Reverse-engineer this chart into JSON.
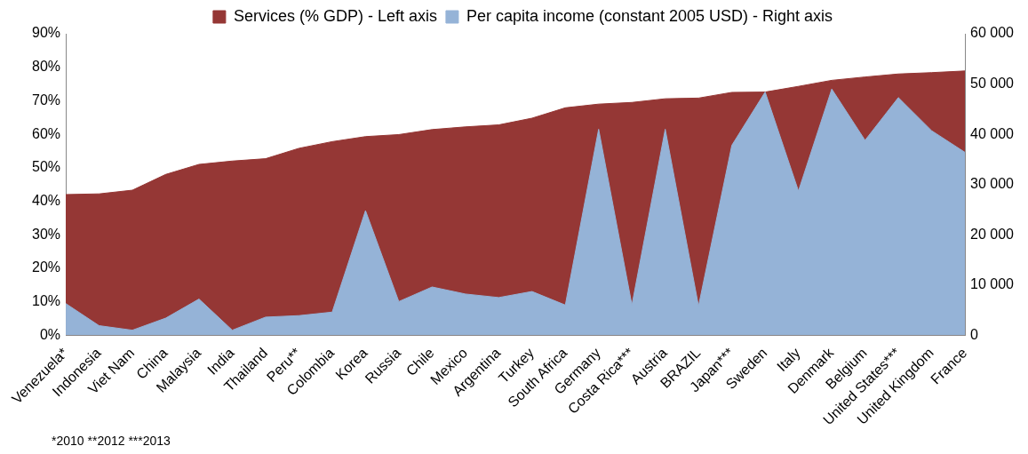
{
  "chart_data": {
    "type": "area",
    "categories": [
      "Venezuela*",
      "Indonesia",
      "Viet Nam",
      "China",
      "Malaysia",
      "India",
      "Thailand",
      "Peru**",
      "Colombia",
      "Korea",
      "Russia",
      "Chile",
      "Mexico",
      "Argentina",
      "Turkey",
      "South Africa",
      "Germany",
      "Costa Rica***",
      "Austria",
      "BRAZIL",
      "Japan***",
      "Sweden",
      "Italy",
      "Denmark",
      "Belgium",
      "United States***",
      "United Kingdom",
      "France"
    ],
    "series": [
      {
        "name": "Services (% GDP) - Left axis",
        "color": "#953735",
        "values": [
          42,
          42.2,
          43.3,
          48,
          51,
          52,
          52.7,
          55.8,
          57.8,
          59.3,
          59.9,
          61.4,
          62.2,
          62.8,
          64.8,
          67.9,
          69,
          69.5,
          70.6,
          70.8,
          72.5,
          72.6,
          74.3,
          76.1,
          77.1,
          78,
          78.4,
          78.9
        ]
      },
      {
        "name": "Per capita income (constant 2005 USD) - Right axis",
        "color": "#95b3d7",
        "axis": "y2",
        "values": [
          6300,
          1900,
          1000,
          3400,
          7200,
          1000,
          3600,
          3900,
          4600,
          24800,
          6700,
          9600,
          8200,
          7500,
          8700,
          6000,
          41000,
          6000,
          41000,
          5800,
          37800,
          48400,
          28700,
          49000,
          38800,
          47300,
          40700,
          36400
        ]
      }
    ],
    "ylim": [
      0,
      90
    ],
    "yticks": [
      {
        "value": 0,
        "label": "0%"
      },
      {
        "value": 10,
        "label": "10%"
      },
      {
        "value": 20,
        "label": "20%"
      },
      {
        "value": 30,
        "label": "30%"
      },
      {
        "value": 40,
        "label": "40%"
      },
      {
        "value": 50,
        "label": "50%"
      },
      {
        "value": 60,
        "label": "60%"
      },
      {
        "value": 70,
        "label": "70%"
      },
      {
        "value": 80,
        "label": "80%"
      },
      {
        "value": 90,
        "label": "90%"
      }
    ],
    "y2lim": [
      0,
      60000
    ],
    "y2ticks": [
      {
        "value": 0,
        "label": "0"
      },
      {
        "value": 10000,
        "label": "10 000"
      },
      {
        "value": 20000,
        "label": "20 000"
      },
      {
        "value": 30000,
        "label": "30 000"
      },
      {
        "value": 40000,
        "label": "40 000"
      },
      {
        "value": 50000,
        "label": "50 000"
      },
      {
        "value": 60000,
        "label": "60 000"
      }
    ],
    "legend": "top",
    "grid": false,
    "annotations": [
      "*2010    **2012    ***2013"
    ]
  }
}
